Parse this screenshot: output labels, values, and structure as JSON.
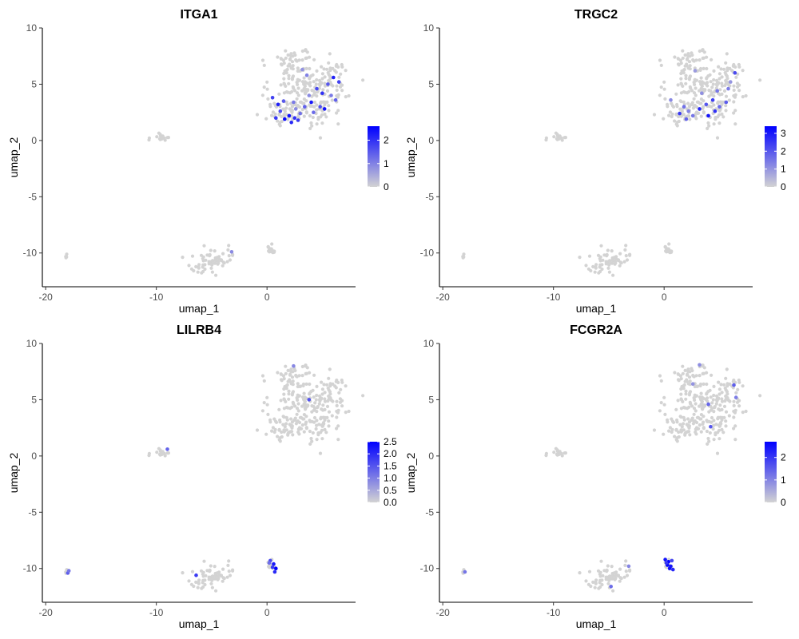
{
  "chart_data": [
    {
      "type": "scatter",
      "title": "ITGA1",
      "xlabel": "umap_1",
      "ylabel": "umap_2",
      "xlim": [
        -20.3,
        8
      ],
      "ylim": [
        -13,
        10
      ],
      "xticks": [
        -20,
        -10,
        0
      ],
      "yticks": [
        -10,
        -5,
        0,
        5,
        10
      ],
      "x_tick_labels": [
        "-20",
        "-10",
        "0"
      ],
      "y_tick_labels": [
        "-10",
        "-5",
        "0",
        "5",
        "10"
      ],
      "grid": false,
      "legend": {
        "position": "right",
        "type": "colorbar",
        "min": 0,
        "max": 2.6,
        "ticks": [
          0,
          1,
          2
        ],
        "tick_labels": [
          "0",
          "1",
          "2"
        ],
        "low_color": "#d3d3d3",
        "high_color": "#0000ff"
      },
      "highlights": [
        {
          "x": 0.5,
          "y": 3.8,
          "v": 1.8
        },
        {
          "x": 1.0,
          "y": 3.2,
          "v": 2.2
        },
        {
          "x": 1.5,
          "y": 3.5,
          "v": 1.5
        },
        {
          "x": 2.0,
          "y": 2.2,
          "v": 2.4
        },
        {
          "x": 2.5,
          "y": 2.0,
          "v": 2.0
        },
        {
          "x": 3.0,
          "y": 2.4,
          "v": 1.2
        },
        {
          "x": 1.6,
          "y": 1.9,
          "v": 2.5
        },
        {
          "x": 2.2,
          "y": 1.6,
          "v": 2.1
        },
        {
          "x": 2.8,
          "y": 1.8,
          "v": 1.9
        },
        {
          "x": 2.6,
          "y": 2.8,
          "v": 0.9
        },
        {
          "x": 1.2,
          "y": 2.6,
          "v": 1.6
        },
        {
          "x": 3.4,
          "y": 3.0,
          "v": 1.4
        },
        {
          "x": 4.0,
          "y": 3.4,
          "v": 2.3
        },
        {
          "x": 4.5,
          "y": 4.6,
          "v": 1.7
        },
        {
          "x": 5.0,
          "y": 4.2,
          "v": 2.0
        },
        {
          "x": 5.5,
          "y": 5.0,
          "v": 1.5
        },
        {
          "x": 6.0,
          "y": 5.6,
          "v": 2.2
        },
        {
          "x": 6.5,
          "y": 5.2,
          "v": 1.8
        },
        {
          "x": 5.8,
          "y": 4.0,
          "v": 1.1
        },
        {
          "x": 4.8,
          "y": 3.0,
          "v": 1.6
        },
        {
          "x": 3.8,
          "y": 4.0,
          "v": 0.9
        },
        {
          "x": 5.2,
          "y": 2.8,
          "v": 2.4
        },
        {
          "x": 4.2,
          "y": 2.5,
          "v": 1.3
        },
        {
          "x": 3.6,
          "y": 5.8,
          "v": 1.0
        },
        {
          "x": 3.2,
          "y": 6.3,
          "v": 0.8
        },
        {
          "x": 6.2,
          "y": 3.6,
          "v": 1.4
        },
        {
          "x": 0.8,
          "y": 2.0,
          "v": 1.9
        },
        {
          "x": 2.4,
          "y": 3.4,
          "v": 1.1
        },
        {
          "x": -3.2,
          "y": -9.9,
          "v": 0.9
        }
      ]
    },
    {
      "type": "scatter",
      "title": "TRGC2",
      "xlabel": "umap_1",
      "ylabel": "umap_2",
      "xlim": [
        -20.3,
        8
      ],
      "ylim": [
        -13,
        10
      ],
      "xticks": [
        -20,
        -10,
        0
      ],
      "yticks": [
        -10,
        -5,
        0,
        5,
        10
      ],
      "x_tick_labels": [
        "-20",
        "-10",
        "0"
      ],
      "y_tick_labels": [
        "-10",
        "-5",
        "0",
        "5",
        "10"
      ],
      "grid": false,
      "legend": {
        "position": "right",
        "type": "colorbar",
        "min": 0,
        "max": 3.4,
        "ticks": [
          0,
          1,
          2,
          3
        ],
        "tick_labels": [
          "0",
          "1",
          "2",
          "3"
        ],
        "low_color": "#d3d3d3",
        "high_color": "#0000ff"
      },
      "highlights": [
        {
          "x": 0.6,
          "y": 3.6,
          "v": 1.2
        },
        {
          "x": 1.4,
          "y": 2.4,
          "v": 2.5
        },
        {
          "x": 2.0,
          "y": 1.9,
          "v": 1.8
        },
        {
          "x": 2.6,
          "y": 2.2,
          "v": 1.5
        },
        {
          "x": 3.2,
          "y": 2.8,
          "v": 2.8
        },
        {
          "x": 3.8,
          "y": 3.2,
          "v": 2.0
        },
        {
          "x": 4.4,
          "y": 3.6,
          "v": 2.4
        },
        {
          "x": 5.0,
          "y": 3.0,
          "v": 1.7
        },
        {
          "x": 5.6,
          "y": 3.4,
          "v": 1.9
        },
        {
          "x": 4.6,
          "y": 2.6,
          "v": 2.6
        },
        {
          "x": 3.4,
          "y": 4.2,
          "v": 1.1
        },
        {
          "x": 2.8,
          "y": 6.2,
          "v": 0.9
        },
        {
          "x": 5.8,
          "y": 4.6,
          "v": 1.4
        },
        {
          "x": 6.4,
          "y": 6.0,
          "v": 2.2
        },
        {
          "x": 6.0,
          "y": 5.2,
          "v": 1.0
        },
        {
          "x": 1.8,
          "y": 3.0,
          "v": 1.6
        },
        {
          "x": 4.0,
          "y": 2.2,
          "v": 3.1
        },
        {
          "x": 2.2,
          "y": 2.6,
          "v": 1.3
        },
        {
          "x": 4.8,
          "y": 4.4,
          "v": 1.5
        }
      ]
    },
    {
      "type": "scatter",
      "title": "LILRB4",
      "xlabel": "umap_1",
      "ylabel": "umap_2",
      "xlim": [
        -20.3,
        8
      ],
      "ylim": [
        -13,
        10
      ],
      "xticks": [
        -20,
        -10,
        0
      ],
      "yticks": [
        -10,
        -5,
        0,
        5,
        10
      ],
      "x_tick_labels": [
        "-20",
        "-10",
        "0"
      ],
      "y_tick_labels": [
        "-10",
        "-5",
        "0",
        "5",
        "10"
      ],
      "grid": false,
      "legend": {
        "position": "right",
        "type": "colorbar",
        "min": 0,
        "max": 2.5,
        "ticks": [
          0,
          0.5,
          1,
          1.5,
          2,
          2.5
        ],
        "tick_labels": [
          "0.0",
          "0.5",
          "1.0",
          "1.5",
          "2.0",
          "2.5"
        ],
        "low_color": "#d3d3d3",
        "high_color": "#0000ff"
      },
      "highlights": [
        {
          "x": 0.3,
          "y": -9.3,
          "v": 1.6
        },
        {
          "x": 0.6,
          "y": -9.6,
          "v": 2.2
        },
        {
          "x": 0.8,
          "y": -10.0,
          "v": 2.5
        },
        {
          "x": 0.5,
          "y": -9.9,
          "v": 1.8
        },
        {
          "x": 0.2,
          "y": -9.5,
          "v": 1.2
        },
        {
          "x": 0.7,
          "y": -10.3,
          "v": 2.0
        },
        {
          "x": -18.0,
          "y": -10.4,
          "v": 1.4
        },
        {
          "x": -17.9,
          "y": -10.2,
          "v": 1.1
        },
        {
          "x": -6.4,
          "y": -10.6,
          "v": 1.8
        },
        {
          "x": -9.0,
          "y": 0.6,
          "v": 1.3
        },
        {
          "x": 3.8,
          "y": 5.0,
          "v": 1.5
        },
        {
          "x": 2.4,
          "y": 8.0,
          "v": 0.9
        }
      ]
    },
    {
      "type": "scatter",
      "title": "FCGR2A",
      "xlabel": "umap_1",
      "ylabel": "umap_2",
      "xlim": [
        -20.3,
        8
      ],
      "ylim": [
        -13,
        10
      ],
      "xticks": [
        -20,
        -10,
        0
      ],
      "yticks": [
        -10,
        -5,
        0,
        5,
        10
      ],
      "x_tick_labels": [
        "-20",
        "-10",
        "0"
      ],
      "y_tick_labels": [
        "-10",
        "-5",
        "0",
        "5",
        "10"
      ],
      "grid": false,
      "legend": {
        "position": "right",
        "type": "colorbar",
        "min": 0,
        "max": 2.7,
        "ticks": [
          0,
          1,
          2
        ],
        "tick_labels": [
          "0",
          "1",
          "2"
        ],
        "low_color": "#d3d3d3",
        "high_color": "#0000ff"
      },
      "highlights": [
        {
          "x": 0.1,
          "y": -9.2,
          "v": 2.5
        },
        {
          "x": 0.4,
          "y": -9.4,
          "v": 2.7
        },
        {
          "x": 0.6,
          "y": -9.8,
          "v": 2.4
        },
        {
          "x": 0.3,
          "y": -9.7,
          "v": 2.6
        },
        {
          "x": 0.8,
          "y": -10.1,
          "v": 2.2
        },
        {
          "x": 0.5,
          "y": -10.0,
          "v": 2.5
        },
        {
          "x": 0.2,
          "y": -9.5,
          "v": 2.0
        },
        {
          "x": 0.7,
          "y": -9.3,
          "v": 1.8
        },
        {
          "x": -18.0,
          "y": -10.3,
          "v": 1.2
        },
        {
          "x": -4.8,
          "y": -11.6,
          "v": 1.3
        },
        {
          "x": -3.2,
          "y": -9.8,
          "v": 1.0
        },
        {
          "x": 6.3,
          "y": 6.3,
          "v": 1.5
        },
        {
          "x": 6.5,
          "y": 5.2,
          "v": 1.1
        },
        {
          "x": 4.0,
          "y": 4.6,
          "v": 1.4
        },
        {
          "x": 3.2,
          "y": 8.1,
          "v": 0.9
        },
        {
          "x": 4.2,
          "y": 2.6,
          "v": 1.6
        },
        {
          "x": 2.6,
          "y": 6.4,
          "v": 0.8
        }
      ]
    }
  ]
}
